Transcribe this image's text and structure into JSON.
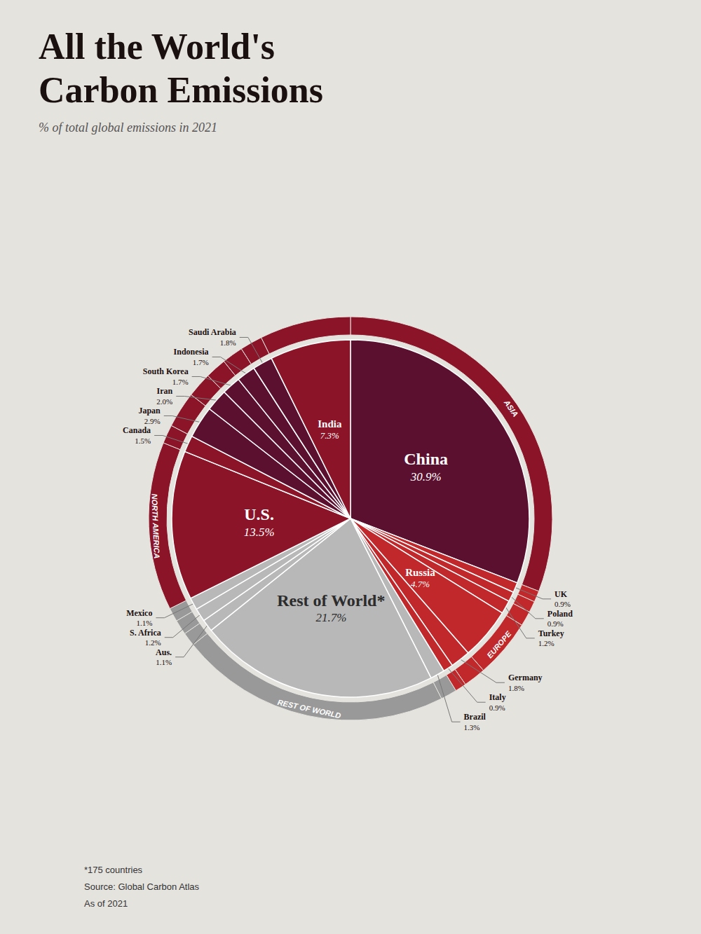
{
  "chart_data": {
    "type": "pie",
    "title": "All the World's\nCarbon Emissions",
    "subtitle": "% of total global emissions in 2021",
    "annotations": [
      "*175 countries",
      "Source: Global Carbon Atlas",
      "As of 2021"
    ],
    "background_color": "#e5e3de",
    "data_labels": true,
    "categories": [
      "China",
      "UK",
      "Poland",
      "Turkey",
      "Russia",
      "Germany",
      "Italy",
      "Brazil",
      "Rest of World*",
      "Aus.",
      "S. Africa",
      "Mexico",
      "U.S.",
      "Canada",
      "Japan",
      "Iran",
      "South Korea",
      "Indonesia",
      "Saudi Arabia",
      "India"
    ],
    "values": [
      30.9,
      0.9,
      0.9,
      1.2,
      4.7,
      1.8,
      0.9,
      1.3,
      21.7,
      1.1,
      1.2,
      1.1,
      13.5,
      1.5,
      2.9,
      2.0,
      1.7,
      1.7,
      1.8,
      7.3
    ],
    "value_labels": [
      "30.9%",
      "0.9%",
      "0.9%",
      "1.2%",
      "4.7%",
      "1.8%",
      "0.9%",
      "1.3%",
      "21.7%",
      "1.1%",
      "1.2%",
      "1.1%",
      "13.5%",
      "1.5%",
      "2.9%",
      "2.0%",
      "1.7%",
      "1.7%",
      "1.8%",
      "7.3%"
    ],
    "colors": [
      "#5c1030",
      "#c0282b",
      "#c0282b",
      "#c0282b",
      "#c0282b",
      "#c0282b",
      "#c0282b",
      "#b8b8b8",
      "#b8b8b8",
      "#b8b8b8",
      "#b8b8b8",
      "#b8b8b8",
      "#8b1428",
      "#8b1428",
      "#5c1030",
      "#5c1030",
      "#5c1030",
      "#5c1030",
      "#5c1030",
      "#8b1428"
    ],
    "regions": [
      {
        "label": "ASIA",
        "color": "#8b1428"
      },
      {
        "label": "EUROPE",
        "color": "#c0282b"
      },
      {
        "label": "REST OF WORLD",
        "color": "#999999"
      },
      {
        "label": "NORTH AMERICA",
        "color": "#8b1428"
      }
    ],
    "slice_regions": [
      "ASIA",
      "EUROPE",
      "EUROPE",
      "EUROPE",
      "EUROPE",
      "EUROPE",
      "EUROPE",
      "REST OF WORLD",
      "REST OF WORLD",
      "REST OF WORLD",
      "REST OF WORLD",
      "REST OF WORLD",
      "NORTH AMERICA",
      "NORTH AMERICA",
      "ASIA",
      "ASIA",
      "ASIA",
      "ASIA",
      "ASIA",
      "ASIA"
    ]
  }
}
